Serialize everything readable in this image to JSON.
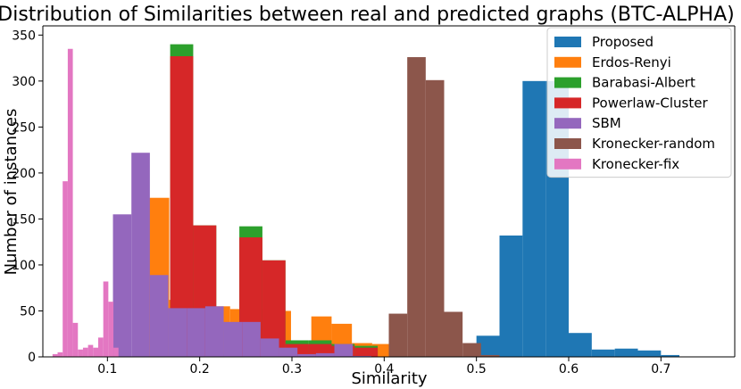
{
  "chart_data": {
    "type": "histogram",
    "title": "Distribution of Similarities between real and predicted graphs (BTC-ALPHA)",
    "xlabel": "Similarity",
    "ylabel": "Number of instances",
    "xlim": [
      0.03,
      0.78
    ],
    "ylim": [
      0,
      360
    ],
    "xticks": [
      0.1,
      0.2,
      0.3,
      0.4,
      0.5,
      0.6,
      0.7
    ],
    "xtick_labels": [
      "0.1",
      "0.2",
      "0.3",
      "0.4",
      "0.5",
      "0.6",
      "0.7"
    ],
    "yticks": [
      0,
      50,
      100,
      150,
      200,
      250,
      300,
      350
    ],
    "ytick_labels": [
      "0",
      "50",
      "100",
      "150",
      "200",
      "250",
      "300",
      "350"
    ],
    "legend_position": "top-right",
    "series": [
      {
        "name": "Proposed",
        "color": "#1f77b4",
        "bins": [
          {
            "x0": 0.5,
            "x1": 0.525,
            "count": 23
          },
          {
            "x0": 0.525,
            "x1": 0.55,
            "count": 132
          },
          {
            "x0": 0.55,
            "x1": 0.575,
            "count": 300
          },
          {
            "x0": 0.575,
            "x1": 0.6,
            "count": 300
          },
          {
            "x0": 0.6,
            "x1": 0.625,
            "count": 26
          },
          {
            "x0": 0.625,
            "x1": 0.65,
            "count": 8
          },
          {
            "x0": 0.65,
            "x1": 0.675,
            "count": 9
          },
          {
            "x0": 0.675,
            "x1": 0.7,
            "count": 7
          },
          {
            "x0": 0.7,
            "x1": 0.72,
            "count": 2
          }
        ]
      },
      {
        "name": "Erdos-Renyi",
        "color": "#ff7f0e",
        "bins": [
          {
            "x0": 0.145,
            "x1": 0.167,
            "count": 173
          },
          {
            "x0": 0.167,
            "x1": 0.189,
            "count": 62
          },
          {
            "x0": 0.189,
            "x1": 0.211,
            "count": 62
          },
          {
            "x0": 0.211,
            "x1": 0.233,
            "count": 55
          },
          {
            "x0": 0.233,
            "x1": 0.255,
            "count": 52
          },
          {
            "x0": 0.255,
            "x1": 0.277,
            "count": 53
          },
          {
            "x0": 0.277,
            "x1": 0.299,
            "count": 50
          },
          {
            "x0": 0.299,
            "x1": 0.321,
            "count": 13
          },
          {
            "x0": 0.321,
            "x1": 0.343,
            "count": 44
          },
          {
            "x0": 0.343,
            "x1": 0.365,
            "count": 36
          },
          {
            "x0": 0.365,
            "x1": 0.387,
            "count": 15
          },
          {
            "x0": 0.387,
            "x1": 0.409,
            "count": 14
          }
        ]
      },
      {
        "name": "Barabasi-Albert",
        "color": "#2ca02c",
        "bins": [
          {
            "x0": 0.168,
            "x1": 0.193,
            "count": 340
          },
          {
            "x0": 0.193,
            "x1": 0.218,
            "count": 143
          },
          {
            "x0": 0.218,
            "x1": 0.243,
            "count": 3
          },
          {
            "x0": 0.243,
            "x1": 0.268,
            "count": 142
          },
          {
            "x0": 0.268,
            "x1": 0.293,
            "count": 105
          },
          {
            "x0": 0.293,
            "x1": 0.318,
            "count": 18
          },
          {
            "x0": 0.318,
            "x1": 0.343,
            "count": 18
          },
          {
            "x0": 0.343,
            "x1": 0.368,
            "count": 14
          },
          {
            "x0": 0.368,
            "x1": 0.393,
            "count": 12
          }
        ]
      },
      {
        "name": "Powerlaw-Cluster",
        "color": "#d62728",
        "bins": [
          {
            "x0": 0.168,
            "x1": 0.193,
            "count": 327
          },
          {
            "x0": 0.193,
            "x1": 0.218,
            "count": 143
          },
          {
            "x0": 0.218,
            "x1": 0.243,
            "count": 1
          },
          {
            "x0": 0.243,
            "x1": 0.268,
            "count": 130
          },
          {
            "x0": 0.268,
            "x1": 0.293,
            "count": 105
          },
          {
            "x0": 0.293,
            "x1": 0.318,
            "count": 14
          },
          {
            "x0": 0.318,
            "x1": 0.343,
            "count": 14
          },
          {
            "x0": 0.343,
            "x1": 0.368,
            "count": 12
          },
          {
            "x0": 0.368,
            "x1": 0.393,
            "count": 10
          }
        ]
      },
      {
        "name": "SBM",
        "color": "#9467bd",
        "bins": [
          {
            "x0": 0.106,
            "x1": 0.126,
            "count": 155
          },
          {
            "x0": 0.126,
            "x1": 0.146,
            "count": 222
          },
          {
            "x0": 0.146,
            "x1": 0.166,
            "count": 89
          },
          {
            "x0": 0.166,
            "x1": 0.186,
            "count": 53
          },
          {
            "x0": 0.186,
            "x1": 0.206,
            "count": 53
          },
          {
            "x0": 0.206,
            "x1": 0.226,
            "count": 55
          },
          {
            "x0": 0.226,
            "x1": 0.246,
            "count": 38
          },
          {
            "x0": 0.246,
            "x1": 0.266,
            "count": 38
          },
          {
            "x0": 0.266,
            "x1": 0.286,
            "count": 20
          },
          {
            "x0": 0.286,
            "x1": 0.306,
            "count": 10
          },
          {
            "x0": 0.306,
            "x1": 0.326,
            "count": 3
          },
          {
            "x0": 0.326,
            "x1": 0.346,
            "count": 4
          },
          {
            "x0": 0.346,
            "x1": 0.366,
            "count": 14
          },
          {
            "x0": 0.366,
            "x1": 0.386,
            "count": 1
          }
        ]
      },
      {
        "name": "Kronecker-random",
        "color": "#8c564b",
        "bins": [
          {
            "x0": 0.405,
            "x1": 0.425,
            "count": 47
          },
          {
            "x0": 0.425,
            "x1": 0.445,
            "count": 326
          },
          {
            "x0": 0.445,
            "x1": 0.465,
            "count": 301
          },
          {
            "x0": 0.465,
            "x1": 0.485,
            "count": 49
          },
          {
            "x0": 0.485,
            "x1": 0.505,
            "count": 15
          },
          {
            "x0": 0.505,
            "x1": 0.525,
            "count": 2
          }
        ]
      },
      {
        "name": "Kronecker-fix",
        "color": "#e377c2",
        "bins": [
          {
            "x0": 0.0405,
            "x1": 0.046,
            "count": 3
          },
          {
            "x0": 0.046,
            "x1": 0.0515,
            "count": 5
          },
          {
            "x0": 0.0515,
            "x1": 0.057,
            "count": 191
          },
          {
            "x0": 0.057,
            "x1": 0.0625,
            "count": 335
          },
          {
            "x0": 0.0625,
            "x1": 0.068,
            "count": 37
          },
          {
            "x0": 0.068,
            "x1": 0.0735,
            "count": 8
          },
          {
            "x0": 0.0735,
            "x1": 0.079,
            "count": 10
          },
          {
            "x0": 0.079,
            "x1": 0.0845,
            "count": 13
          },
          {
            "x0": 0.0845,
            "x1": 0.09,
            "count": 10
          },
          {
            "x0": 0.09,
            "x1": 0.0955,
            "count": 21
          },
          {
            "x0": 0.0955,
            "x1": 0.101,
            "count": 82
          },
          {
            "x0": 0.101,
            "x1": 0.1065,
            "count": 60
          },
          {
            "x0": 0.1065,
            "x1": 0.112,
            "count": 10
          }
        ]
      }
    ]
  }
}
